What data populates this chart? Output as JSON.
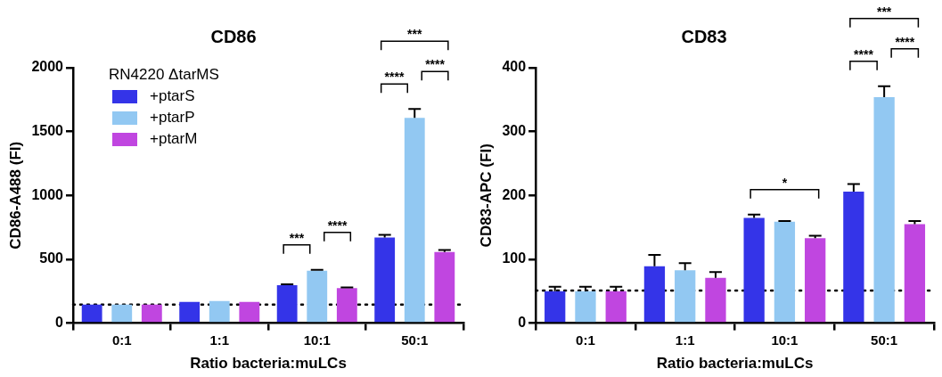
{
  "chart_data": [
    {
      "type": "bar",
      "title": "CD86",
      "xlabel": "Ratio bacteria:muLCs",
      "ylabel": "CD86-A488 (FI)",
      "legend_title": "RN4220 ΔtarMS",
      "legend": "top left",
      "grid": false,
      "categories": [
        "0:1",
        "1:1",
        "10:1",
        "50:1"
      ],
      "series": [
        {
          "name": "+ptarS",
          "color": "#3434e8",
          "values": [
            145,
            166,
            298,
            671
          ],
          "errors": [
            null,
            null,
            6,
            20
          ]
        },
        {
          "name": "+ptarP",
          "color": "#92c8f2",
          "values": [
            145,
            173,
            411,
            1608
          ],
          "errors": [
            null,
            null,
            6,
            70
          ]
        },
        {
          "name": "+ptarM",
          "color": "#c046e0",
          "values": [
            145,
            166,
            274,
            558
          ],
          "errors": [
            null,
            null,
            5,
            15
          ]
        }
      ],
      "ylim": [
        0,
        2000
      ],
      "yticks": [
        0,
        500,
        1000,
        1500,
        2000
      ],
      "ref_lines": [
        {
          "axis": "y",
          "value": 145,
          "line_style": "dotted"
        }
      ],
      "annotations": [
        "***",
        "****",
        "****",
        "****",
        "***"
      ]
    },
    {
      "type": "bar",
      "title": "CD83",
      "xlabel": "Ratio bacteria:muLCs",
      "ylabel": "CD83-APC (FI)",
      "grid": false,
      "categories": [
        "0:1",
        "1:1",
        "10:1",
        "50:1"
      ],
      "series": [
        {
          "color": "#3434e8",
          "values": [
            50,
            89,
            165,
            206
          ],
          "errors": [
            7,
            18,
            5,
            12
          ]
        },
        {
          "color": "#92c8f2",
          "values": [
            50,
            83,
            159,
            354
          ],
          "errors": [
            7,
            11,
            1,
            17
          ]
        },
        {
          "color": "#c046e0",
          "values": [
            50,
            71,
            133,
            155
          ],
          "errors": [
            7,
            9,
            4,
            5
          ]
        }
      ],
      "ylim": [
        0,
        400
      ],
      "yticks": [
        0,
        100,
        200,
        300,
        400
      ],
      "ref_lines": [
        {
          "axis": "y",
          "value": 51,
          "line_style": "dotted"
        }
      ],
      "annotations": [
        "*",
        "****",
        "****",
        "***"
      ]
    }
  ]
}
